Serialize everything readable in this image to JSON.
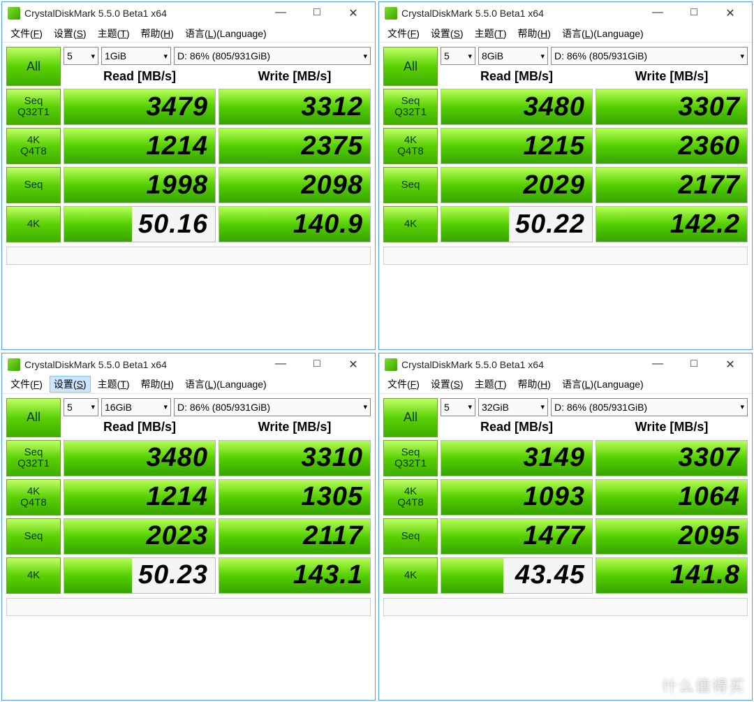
{
  "app": {
    "title": "CrystalDiskMark 5.5.0 Beta1 x64",
    "icon_color_stops": [
      "#7ee02a",
      "#3aa500"
    ]
  },
  "window_controls": {
    "minimize": "—",
    "maximize": "□",
    "close": "✕"
  },
  "menubar": {
    "file": {
      "label": "文件",
      "accel": "F"
    },
    "settings": {
      "label": "设置",
      "accel": "S"
    },
    "theme": {
      "label": "主题",
      "accel": "T"
    },
    "help": {
      "label": "帮助",
      "accel": "H"
    },
    "language": {
      "label": "语言",
      "accel": "L",
      "suffix": "(Language)"
    }
  },
  "common": {
    "all_button": "All",
    "runs": "5",
    "drive": "D: 86% (805/931GiB)",
    "headers": {
      "read": "Read [MB/s]",
      "write": "Write [MB/s]"
    },
    "test_labels": {
      "seq_q32t1": {
        "line1": "Seq",
        "line2": "Q32T1"
      },
      "k4_q4t8": {
        "line1": "4K",
        "line2": "Q4T8"
      },
      "seq": {
        "line1": "Seq",
        "line2": ""
      },
      "k4": {
        "line1": "4K",
        "line2": ""
      }
    }
  },
  "colors": {
    "window_border": "#44a0ff",
    "green_gradient": [
      "#bfff66",
      "#5bd104",
      "#3fae00"
    ],
    "green_border": "#6aa61f",
    "cell_border": "#b9b9b9",
    "cell_bg": "#f5f5f5"
  },
  "panels": [
    {
      "size": "1GiB",
      "settings_hover": false,
      "rows": [
        {
          "read": {
            "text": "3479",
            "fill": 100
          },
          "write": {
            "text": "3312",
            "fill": 100
          }
        },
        {
          "read": {
            "text": "1214",
            "fill": 100
          },
          "write": {
            "text": "2375",
            "fill": 100
          }
        },
        {
          "read": {
            "text": "1998",
            "fill": 100
          },
          "write": {
            "text": "2098",
            "fill": 100
          }
        },
        {
          "read": {
            "text": "50.16",
            "fill": 45
          },
          "write": {
            "text": "140.9",
            "fill": 100
          }
        }
      ]
    },
    {
      "size": "8GiB",
      "settings_hover": false,
      "rows": [
        {
          "read": {
            "text": "3480",
            "fill": 100
          },
          "write": {
            "text": "3307",
            "fill": 100
          }
        },
        {
          "read": {
            "text": "1215",
            "fill": 100
          },
          "write": {
            "text": "2360",
            "fill": 100
          }
        },
        {
          "read": {
            "text": "2029",
            "fill": 100
          },
          "write": {
            "text": "2177",
            "fill": 100
          }
        },
        {
          "read": {
            "text": "50.22",
            "fill": 45
          },
          "write": {
            "text": "142.2",
            "fill": 100
          }
        }
      ]
    },
    {
      "size": "16GiB",
      "settings_hover": true,
      "rows": [
        {
          "read": {
            "text": "3480",
            "fill": 100
          },
          "write": {
            "text": "3310",
            "fill": 100
          }
        },
        {
          "read": {
            "text": "1214",
            "fill": 100
          },
          "write": {
            "text": "1305",
            "fill": 100
          }
        },
        {
          "read": {
            "text": "2023",
            "fill": 100
          },
          "write": {
            "text": "2117",
            "fill": 100
          }
        },
        {
          "read": {
            "text": "50.23",
            "fill": 45
          },
          "write": {
            "text": "143.1",
            "fill": 100
          }
        }
      ]
    },
    {
      "size": "32GiB",
      "settings_hover": false,
      "rows": [
        {
          "read": {
            "text": "3149",
            "fill": 100
          },
          "write": {
            "text": "3307",
            "fill": 100
          }
        },
        {
          "read": {
            "text": "1093",
            "fill": 100
          },
          "write": {
            "text": "1064",
            "fill": 100
          }
        },
        {
          "read": {
            "text": "1477",
            "fill": 100
          },
          "write": {
            "text": "2095",
            "fill": 100
          }
        },
        {
          "read": {
            "text": "43.45",
            "fill": 41
          },
          "write": {
            "text": "141.8",
            "fill": 100
          }
        }
      ]
    }
  ],
  "watermark": "什么值得买"
}
